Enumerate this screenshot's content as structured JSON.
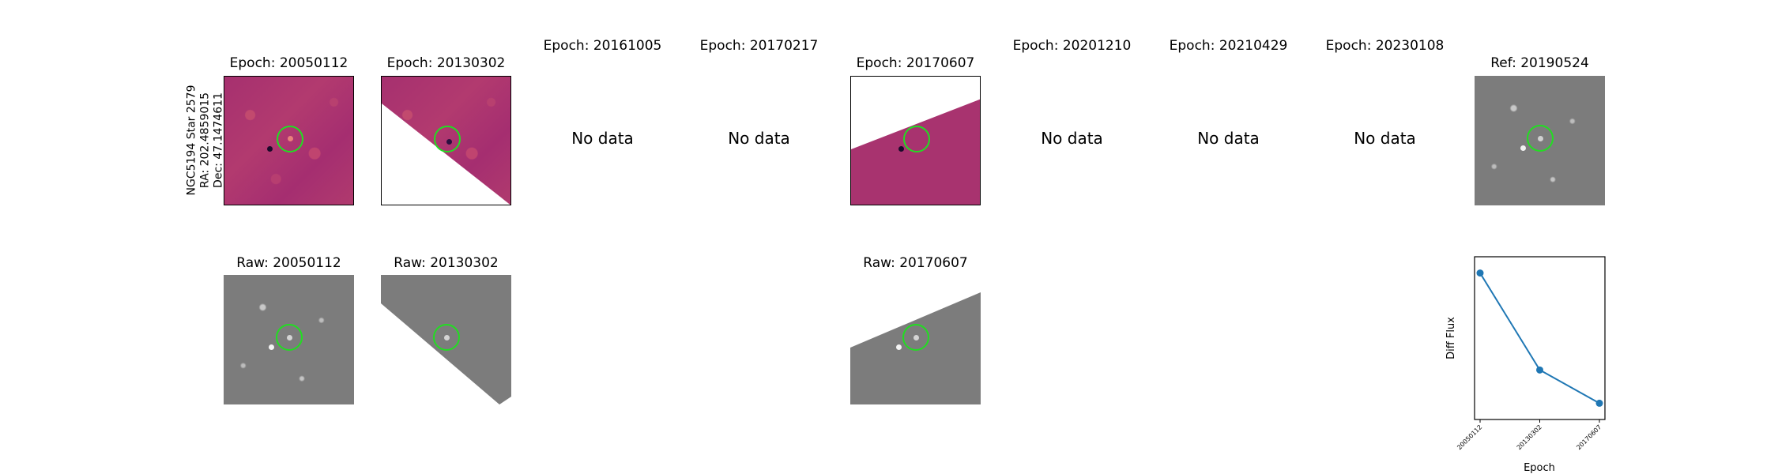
{
  "row_label": {
    "name": "NGC5194 Star 2579",
    "ra": "RA: 202.4859015",
    "dec": "Dec: 47.1474611"
  },
  "epoch_titles": [
    "Epoch: 20050112",
    "Epoch: 20130302",
    "Epoch: 20161005",
    "Epoch: 20170217",
    "Epoch: 20170607",
    "Epoch: 20201210",
    "Epoch: 20210429",
    "Epoch: 20230108"
  ],
  "ref_title": "Ref: 20190524",
  "no_data_text": "No data",
  "raw_titles": [
    "Raw: 20050112",
    "Raw: 20130302",
    "Raw: 20170607"
  ],
  "colors": {
    "circle": "#22dd22",
    "line": "#1f77b4",
    "diff_bg": "#a8336f",
    "raw_bg": "#7c7c7c"
  },
  "chart_data": {
    "type": "line",
    "xlabel": "Epoch",
    "ylabel": "Diff Flux",
    "categories": [
      "20050112",
      "20130302",
      "20170607"
    ],
    "values": [
      1.0,
      0.3,
      0.06
    ],
    "yticks_shown": false,
    "grid": false,
    "marker": "circle"
  }
}
